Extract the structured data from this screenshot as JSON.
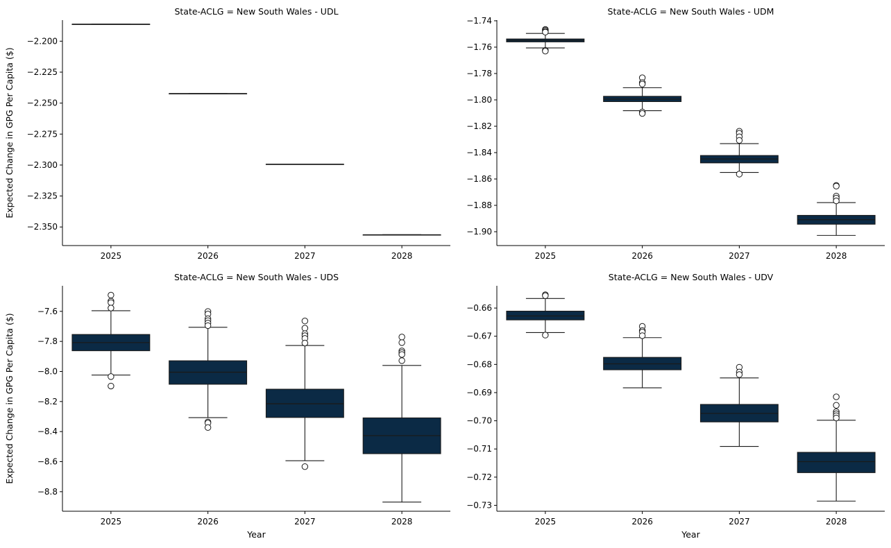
{
  "colors": {
    "box_fill": "#0b2a45",
    "stroke": "#1a1a1a",
    "flier_fill": "#ffffff",
    "axis": "#000000"
  },
  "chart_data": [
    {
      "type": "box",
      "title": "State-ACLG = New South Wales - UDL",
      "xlabel": "",
      "ylabel": "Expected Change in GPG Per Capita ($)",
      "categories": [
        "2025",
        "2026",
        "2027",
        "2028"
      ],
      "ylim": [
        -2.365,
        -2.183
      ],
      "yticks": [
        -2.2,
        -2.225,
        -2.25,
        -2.275,
        -2.3,
        -2.325,
        -2.35
      ],
      "ytick_labels": [
        "−2.200",
        "−2.225",
        "−2.250",
        "−2.275",
        "−2.300",
        "−2.325",
        "−2.350"
      ],
      "boxes": [
        {
          "q1": -2.1863,
          "median": -2.1863,
          "q3": -2.1863,
          "whislo": -2.1863,
          "whishi": -2.1863,
          "fliers": []
        },
        {
          "q1": -2.2423,
          "median": -2.2423,
          "q3": -2.2423,
          "whislo": -2.2423,
          "whishi": -2.2423,
          "fliers": []
        },
        {
          "q1": -2.2993,
          "median": -2.2993,
          "q3": -2.2993,
          "whislo": -2.2993,
          "whishi": -2.2993,
          "fliers": []
        },
        {
          "q1": -2.3563,
          "median": -2.3563,
          "q3": -2.3563,
          "whislo": -2.3563,
          "whishi": -2.3563,
          "fliers": []
        }
      ]
    },
    {
      "type": "box",
      "title": "State-ACLG = New South Wales - UDM",
      "xlabel": "",
      "ylabel": "",
      "categories": [
        "2025",
        "2026",
        "2027",
        "2028"
      ],
      "ylim": [
        -1.9105,
        -1.7395
      ],
      "yticks": [
        -1.74,
        -1.76,
        -1.78,
        -1.8,
        -1.82,
        -1.84,
        -1.86,
        -1.88,
        -1.9
      ],
      "ytick_labels": [
        "−1.74",
        "−1.76",
        "−1.78",
        "−1.80",
        "−1.82",
        "−1.84",
        "−1.86",
        "−1.88",
        "−1.90"
      ],
      "boxes": [
        {
          "q1": -1.756,
          "median": -1.7549,
          "q3": -1.7538,
          "whislo": -1.7606,
          "whishi": -1.7496,
          "fliers": [
            -1.7466,
            -1.7472,
            -1.7481,
            -1.7486,
            -1.7624,
            -1.763
          ]
        },
        {
          "q1": -1.8013,
          "median": -1.7994,
          "q3": -1.7973,
          "whislo": -1.8082,
          "whishi": -1.7908,
          "fliers": [
            -1.7832,
            -1.7869,
            -1.788,
            -1.8092,
            -1.8103
          ]
        },
        {
          "q1": -1.8478,
          "median": -1.8448,
          "q3": -1.8422,
          "whislo": -1.855,
          "whishi": -1.8332,
          "fliers": [
            -1.8238,
            -1.8253,
            -1.828,
            -1.8307,
            -1.8563
          ]
        },
        {
          "q1": -1.8943,
          "median": -1.8909,
          "q3": -1.8876,
          "whislo": -1.9028,
          "whishi": -1.8779,
          "fliers": [
            -1.8649,
            -1.8654,
            -1.873,
            -1.8745,
            -1.8766
          ]
        }
      ]
    },
    {
      "type": "box",
      "title": "State-ACLG = New South Wales - UDS",
      "xlabel": "Year",
      "ylabel": "Expected Change in GPG Per Capita ($)",
      "categories": [
        "2025",
        "2026",
        "2027",
        "2028"
      ],
      "ylim": [
        -8.93,
        -7.43
      ],
      "yticks": [
        -7.6,
        -7.8,
        -8.0,
        -8.2,
        -8.4,
        -8.6,
        -8.8
      ],
      "ytick_labels": [
        "−7.6",
        "−7.8",
        "−8.0",
        "−8.2",
        "−8.4",
        "−8.6",
        "−8.8"
      ],
      "boxes": [
        {
          "q1": -7.862,
          "median": -7.808,
          "q3": -7.754,
          "whislo": -8.024,
          "whishi": -7.596,
          "fliers": [
            -7.492,
            -7.532,
            -7.542,
            -7.578,
            -8.034,
            -8.097
          ]
        },
        {
          "q1": -8.085,
          "median": -8.005,
          "q3": -7.929,
          "whislo": -8.307,
          "whishi": -7.706,
          "fliers": [
            -7.601,
            -7.618,
            -7.649,
            -7.662,
            -7.678,
            -7.695,
            -8.336,
            -8.343,
            -8.373
          ]
        },
        {
          "q1": -8.306,
          "median": -8.215,
          "q3": -8.118,
          "whislo": -8.594,
          "whishi": -7.827,
          "fliers": [
            -7.664,
            -7.712,
            -7.748,
            -7.762,
            -7.78,
            -7.811,
            -8.633
          ]
        },
        {
          "q1": -8.547,
          "median": -8.427,
          "q3": -8.309,
          "whislo": -8.869,
          "whishi": -7.96,
          "fliers": [
            -7.771,
            -7.808,
            -7.863,
            -7.874,
            -7.887,
            -7.928
          ]
        }
      ]
    },
    {
      "type": "box",
      "title": "State-ACLG = New South Wales - UDV",
      "xlabel": "Year",
      "ylabel": "",
      "categories": [
        "2025",
        "2026",
        "2027",
        "2028"
      ],
      "ylim": [
        -0.7321,
        -0.6521
      ],
      "yticks": [
        -0.66,
        -0.67,
        -0.68,
        -0.69,
        -0.7,
        -0.71,
        -0.72,
        -0.73
      ],
      "ytick_labels": [
        "−0.66",
        "−0.67",
        "−0.68",
        "−0.69",
        "−0.70",
        "−0.71",
        "−0.72",
        "−0.73"
      ],
      "boxes": [
        {
          "q1": -0.6642,
          "median": -0.6628,
          "q3": -0.6611,
          "whislo": -0.6687,
          "whishi": -0.6566,
          "fliers": [
            -0.6553,
            -0.6556,
            -0.6696
          ]
        },
        {
          "q1": -0.6819,
          "median": -0.6798,
          "q3": -0.6775,
          "whislo": -0.6883,
          "whishi": -0.6705,
          "fliers": [
            -0.6665,
            -0.668,
            -0.6685,
            -0.6698
          ]
        },
        {
          "q1": -0.7004,
          "median": -0.6974,
          "q3": -0.6942,
          "whislo": -0.7091,
          "whishi": -0.6848,
          "fliers": [
            -0.681,
            -0.6827,
            -0.6836
          ]
        },
        {
          "q1": -0.7184,
          "median": -0.7145,
          "q3": -0.7112,
          "whislo": -0.7285,
          "whishi": -0.6998,
          "fliers": [
            -0.6915,
            -0.6945,
            -0.6968,
            -0.6975,
            -0.6982,
            -0.699
          ]
        }
      ]
    }
  ]
}
